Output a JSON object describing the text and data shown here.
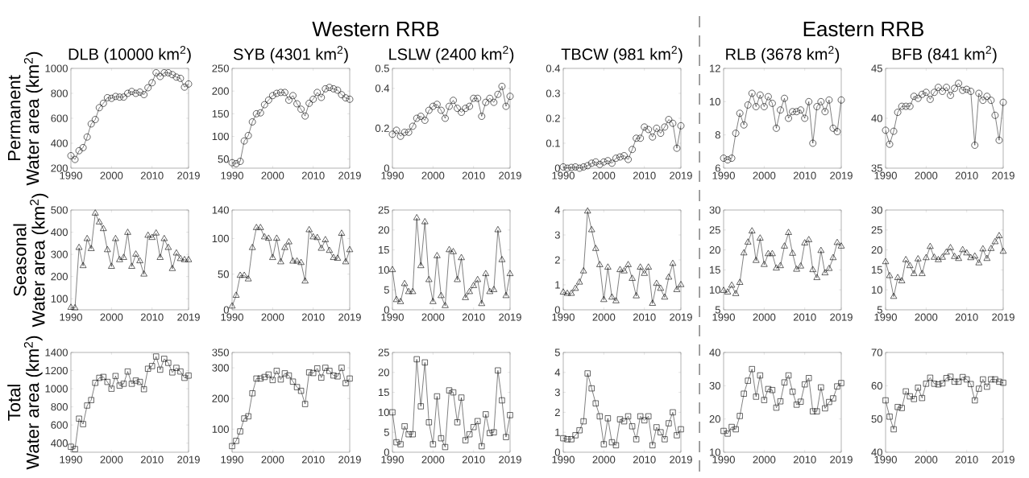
{
  "chart_data": [
    {
      "type": "line",
      "title": "DLB (10000 km$^{2}$)",
      "ylabel": "Permanent\nWater area (km$^{2}$)",
      "annotations": [
        "Western RRB"
      ],
      "marker": "circle",
      "color": "#000000",
      "xlim": [
        1990,
        2019
      ],
      "xticks": [
        1990,
        2000,
        2010,
        2019
      ],
      "ylim": [
        200,
        1000
      ],
      "yticks": [
        200,
        400,
        600,
        800,
        1000
      ],
      "x": [
        1990,
        1991,
        1992,
        1993,
        1994,
        1995,
        1996,
        1997,
        1998,
        1999,
        2000,
        2001,
        2002,
        2003,
        2004,
        2005,
        2006,
        2007,
        2008,
        2009,
        2010,
        2011,
        2012,
        2013,
        2014,
        2015,
        2016,
        2017,
        2018,
        2019
      ],
      "values": [
        300,
        270,
        340,
        365,
        450,
        555,
        590,
        685,
        720,
        765,
        760,
        775,
        770,
        770,
        800,
        815,
        800,
        810,
        790,
        845,
        885,
        965,
        935,
        965,
        965,
        950,
        930,
        920,
        850,
        875
      ]
    },
    {
      "type": "line",
      "title": "SYB (4301 km$^{2}$)",
      "marker": "circle",
      "color": "#000000",
      "xlim": [
        1990,
        2019
      ],
      "xticks": [
        1990,
        2000,
        2010,
        2019
      ],
      "ylim": [
        30,
        250
      ],
      "yticks": [
        50,
        100,
        150,
        200,
        250
      ],
      "x": [
        1990,
        1991,
        1992,
        1993,
        1994,
        1995,
        1996,
        1997,
        1998,
        1999,
        2000,
        2001,
        2002,
        2003,
        2004,
        2005,
        2006,
        2007,
        2008,
        2009,
        2010,
        2011,
        2012,
        2013,
        2014,
        2015,
        2016,
        2017,
        2018,
        2019
      ],
      "values": [
        42,
        40,
        45,
        90,
        102,
        132,
        150,
        152,
        170,
        180,
        190,
        195,
        197,
        197,
        180,
        190,
        172,
        160,
        145,
        173,
        182,
        197,
        186,
        205,
        208,
        205,
        202,
        192,
        185,
        182
      ]
    },
    {
      "type": "line",
      "title": "LSLW (2400 km$^{2}$)",
      "marker": "circle",
      "color": "#000000",
      "xlim": [
        1990,
        2019
      ],
      "xticks": [
        1990,
        2000,
        2010,
        2019
      ],
      "ylim": [
        0,
        0.5
      ],
      "yticks": [
        0,
        0.2,
        0.4,
        0.5
      ],
      "x": [
        1990,
        1991,
        1992,
        1993,
        1994,
        1995,
        1996,
        1997,
        1998,
        1999,
        2000,
        2001,
        2002,
        2003,
        2004,
        2005,
        2006,
        2007,
        2008,
        2009,
        2010,
        2011,
        2012,
        2013,
        2014,
        2015,
        2016,
        2017,
        2018,
        2019
      ],
      "values": [
        0.17,
        0.19,
        0.16,
        0.18,
        0.18,
        0.21,
        0.25,
        0.26,
        0.24,
        0.29,
        0.31,
        0.32,
        0.29,
        0.25,
        0.31,
        0.34,
        0.3,
        0.28,
        0.3,
        0.31,
        0.35,
        0.35,
        0.26,
        0.33,
        0.35,
        0.33,
        0.37,
        0.41,
        0.31,
        0.36
      ]
    },
    {
      "type": "line",
      "title": "TBCW (981 km$^{2}$)",
      "marker": "circle",
      "color": "#000000",
      "xlim": [
        1990,
        2019
      ],
      "xticks": [
        1990,
        2000,
        2010,
        2019
      ],
      "ylim": [
        0,
        0.4
      ],
      "yticks": [
        0,
        0.1,
        0.2,
        0.3,
        0.4
      ],
      "x": [
        1990,
        1991,
        1992,
        1993,
        1994,
        1995,
        1996,
        1997,
        1998,
        1999,
        2000,
        2001,
        2002,
        2003,
        2004,
        2005,
        2006,
        2007,
        2008,
        2009,
        2010,
        2011,
        2012,
        2013,
        2014,
        2015,
        2016,
        2017,
        2018,
        2019
      ],
      "values": [
        0.005,
        0,
        0.003,
        0.005,
        0,
        0.005,
        0.01,
        0.02,
        0.025,
        0.015,
        0.025,
        0.03,
        0.02,
        0.04,
        0.045,
        0.05,
        0.035,
        0.075,
        0.12,
        0.12,
        0.165,
        0.155,
        0.125,
        0.16,
        0.14,
        0.165,
        0.195,
        0.18,
        0.08,
        0.17
      ]
    },
    {
      "type": "line",
      "title": "RLB (3678 km$^{2}$)",
      "annotations": [
        "Eastern RRB"
      ],
      "marker": "circle",
      "color": "#000000",
      "xlim": [
        1990,
        2019
      ],
      "xticks": [
        1990,
        2000,
        2010,
        2019
      ],
      "ylim": [
        6,
        12
      ],
      "yticks": [
        6,
        8,
        10,
        12
      ],
      "x": [
        1990,
        1991,
        1992,
        1993,
        1994,
        1995,
        1996,
        1997,
        1998,
        1999,
        2000,
        2001,
        2002,
        2003,
        2004,
        2005,
        2006,
        2007,
        2008,
        2009,
        2010,
        2011,
        2012,
        2013,
        2014,
        2015,
        2016,
        2017,
        2018,
        2019
      ],
      "values": [
        6.6,
        6.5,
        6.6,
        8.1,
        9.3,
        8.6,
        9.8,
        10.5,
        9.7,
        10.4,
        9.7,
        10.3,
        9.9,
        8.4,
        9.5,
        10.2,
        9.0,
        9.4,
        9.4,
        9.5,
        9.0,
        10.0,
        7.5,
        9.7,
        10.0,
        9.4,
        10.1,
        8.4,
        8.2,
        10.1
      ]
    },
    {
      "type": "line",
      "title": "BFB (841 km$^{2}$)",
      "marker": "circle",
      "color": "#000000",
      "xlim": [
        1990,
        2019
      ],
      "xticks": [
        1990,
        2000,
        2010,
        2019
      ],
      "ylim": [
        35,
        45
      ],
      "yticks": [
        35,
        40,
        45
      ],
      "x": [
        1990,
        1991,
        1992,
        1993,
        1994,
        1995,
        1996,
        1997,
        1998,
        1999,
        2000,
        2001,
        2002,
        2003,
        2004,
        2005,
        2006,
        2007,
        2008,
        2009,
        2010,
        2011,
        2012,
        2013,
        2014,
        2015,
        2016,
        2017,
        2018,
        2019
      ],
      "values": [
        38.8,
        37.4,
        38.7,
        40.6,
        41.2,
        41.2,
        41.2,
        42.2,
        42.0,
        42.4,
        42.6,
        41.9,
        42.6,
        43.1,
        42.7,
        43.1,
        42.3,
        43.0,
        43.5,
        42.8,
        42.9,
        42.7,
        37.3,
        42.5,
        41.8,
        42.2,
        41.8,
        40.3,
        37.8,
        41.6
      ]
    },
    {
      "type": "line",
      "ylabel": "Seasonal\nWater area (km$^{2}$)",
      "marker": "triangle",
      "color": "#000000",
      "xlim": [
        1990,
        2019
      ],
      "xticks": [
        1990,
        2000,
        2010,
        2019
      ],
      "ylim": [
        50,
        500
      ],
      "yticks": [
        100,
        200,
        300,
        400,
        500
      ],
      "x": [
        1990,
        1991,
        1992,
        1993,
        1994,
        1995,
        1996,
        1997,
        1998,
        1999,
        2000,
        2001,
        2002,
        2003,
        2004,
        2005,
        2006,
        2007,
        2008,
        2009,
        2010,
        2011,
        2012,
        2013,
        2014,
        2015,
        2016,
        2017,
        2018,
        2019
      ],
      "values": [
        60,
        58,
        330,
        248,
        370,
        325,
        485,
        445,
        415,
        320,
        245,
        370,
        275,
        285,
        398,
        245,
        300,
        270,
        210,
        385,
        375,
        395,
        285,
        370,
        330,
        235,
        305,
        280,
        275,
        275
      ]
    },
    {
      "type": "line",
      "marker": "triangle",
      "color": "#000000",
      "xlim": [
        1990,
        2019
      ],
      "xticks": [
        1990,
        2000,
        2010,
        2019
      ],
      "ylim": [
        0,
        140
      ],
      "yticks": [
        0,
        50,
        100,
        140
      ],
      "x": [
        1990,
        1991,
        1992,
        1993,
        1994,
        1995,
        1996,
        1997,
        1998,
        1999,
        2000,
        2001,
        2002,
        2003,
        2004,
        2005,
        2006,
        2007,
        2008,
        2009,
        2010,
        2011,
        2012,
        2013,
        2014,
        2015,
        2016,
        2017,
        2018,
        2019
      ],
      "values": [
        5,
        20,
        48,
        48,
        43,
        87,
        115,
        115,
        102,
        100,
        73,
        100,
        67,
        87,
        95,
        68,
        68,
        66,
        40,
        112,
        102,
        101,
        86,
        98,
        83,
        73,
        72,
        107,
        67,
        84
      ]
    },
    {
      "type": "line",
      "marker": "triangle",
      "color": "#000000",
      "xlim": [
        1990,
        2019
      ],
      "xticks": [
        1990,
        2000,
        2010,
        2019
      ],
      "ylim": [
        0,
        25
      ],
      "yticks": [
        0,
        5,
        10,
        15,
        20,
        25
      ],
      "x": [
        1990,
        1991,
        1992,
        1993,
        1994,
        1995,
        1996,
        1997,
        1998,
        1999,
        2000,
        2001,
        2002,
        2003,
        2004,
        2005,
        2006,
        2007,
        2008,
        2009,
        2010,
        2011,
        2012,
        2013,
        2014,
        2015,
        2016,
        2017,
        2018,
        2019
      ],
      "values": [
        10,
        2.5,
        2,
        6.5,
        4.5,
        4.5,
        23,
        11,
        22,
        7.5,
        2,
        13.5,
        3.5,
        1,
        15,
        14.5,
        7.5,
        13,
        3,
        4.5,
        6,
        7.5,
        1.5,
        9,
        4.5,
        5,
        20,
        12.5,
        3.5,
        9
      ]
    },
    {
      "type": "line",
      "marker": "triangle",
      "color": "#000000",
      "xlim": [
        1990,
        2019
      ],
      "xticks": [
        1990,
        2000,
        2010,
        2019
      ],
      "ylim": [
        0,
        4
      ],
      "yticks": [
        0,
        1,
        2,
        3,
        4
      ],
      "x": [
        1990,
        1991,
        1992,
        1993,
        1994,
        1995,
        1996,
        1997,
        1998,
        1999,
        2000,
        2001,
        2002,
        2003,
        2004,
        2005,
        2006,
        2007,
        2008,
        2009,
        2010,
        2011,
        2012,
        2013,
        2014,
        2015,
        2016,
        2017,
        2018,
        2019
      ],
      "values": [
        0.7,
        0.65,
        0.65,
        0.85,
        1.1,
        1.55,
        3.95,
        3.2,
        2.45,
        1.8,
        0.4,
        1.7,
        0.5,
        0.35,
        1.6,
        1.55,
        1.8,
        1.25,
        0.55,
        1.7,
        1.45,
        1.7,
        0.25,
        1.05,
        0.85,
        0.5,
        1.3,
        1.85,
        0.8,
        1.0
      ]
    },
    {
      "type": "line",
      "marker": "triangle",
      "color": "#000000",
      "xlim": [
        1990,
        2019
      ],
      "xticks": [
        1990,
        2000,
        2010,
        2019
      ],
      "ylim": [
        5,
        30
      ],
      "yticks": [
        5,
        10,
        15,
        20,
        25,
        30
      ],
      "x": [
        1990,
        1991,
        1992,
        1993,
        1994,
        1995,
        1996,
        1997,
        1998,
        1999,
        2000,
        2001,
        2002,
        2003,
        2004,
        2005,
        2006,
        2007,
        2008,
        2009,
        2010,
        2011,
        2012,
        2013,
        2014,
        2015,
        2016,
        2017,
        2018,
        2019
      ],
      "values": [
        9.8,
        9.4,
        11.1,
        9.0,
        11.8,
        19.2,
        21.9,
        24.7,
        17.3,
        22.9,
        16.3,
        19.0,
        19.0,
        15.4,
        16.0,
        20.9,
        24.3,
        19.1,
        15.1,
        15.9,
        21.7,
        22.5,
        15.0,
        13.0,
        19.8,
        14.2,
        15.3,
        18.0,
        21.8,
        20.9
      ]
    },
    {
      "type": "line",
      "marker": "triangle",
      "color": "#000000",
      "xlim": [
        1990,
        2019
      ],
      "xticks": [
        1990,
        2000,
        2010,
        2019
      ],
      "ylim": [
        5,
        30
      ],
      "yticks": [
        5,
        10,
        15,
        20,
        25,
        30
      ],
      "x": [
        1990,
        1991,
        1992,
        1993,
        1994,
        1995,
        1996,
        1997,
        1998,
        1999,
        2000,
        2001,
        2002,
        2003,
        2004,
        2005,
        2006,
        2007,
        2008,
        2009,
        2010,
        2011,
        2012,
        2013,
        2014,
        2015,
        2016,
        2017,
        2018,
        2019
      ],
      "values": [
        17,
        13.5,
        8.3,
        13,
        12.2,
        17.5,
        16,
        14,
        17.7,
        14,
        18,
        20.8,
        18.1,
        17.5,
        18.1,
        19.4,
        20.5,
        18.3,
        17.8,
        20,
        19.2,
        18,
        18.4,
        16.7,
        20.2,
        17.8,
        20.3,
        22,
        23.5,
        19.6
      ]
    },
    {
      "type": "line",
      "ylabel": "Total\nWater area (km$^{2}$)",
      "marker": "square",
      "color": "#000000",
      "xlim": [
        1990,
        2019
      ],
      "xticks": [
        1990,
        2000,
        2010,
        2019
      ],
      "ylim": [
        300,
        1400
      ],
      "yticks": [
        400,
        600,
        800,
        1000,
        1200,
        1400
      ],
      "x": [
        1990,
        1991,
        1992,
        1993,
        1994,
        1995,
        1996,
        1997,
        1998,
        1999,
        2000,
        2001,
        2002,
        2003,
        2004,
        2005,
        2006,
        2007,
        2008,
        2009,
        2010,
        2011,
        2012,
        2013,
        2014,
        2015,
        2016,
        2017,
        2018,
        2019
      ],
      "values": [
        360,
        335,
        670,
        610,
        815,
        875,
        1065,
        1120,
        1130,
        1075,
        1000,
        1140,
        1035,
        1055,
        1190,
        1055,
        1090,
        1075,
        995,
        1220,
        1250,
        1355,
        1210,
        1330,
        1285,
        1180,
        1230,
        1190,
        1120,
        1145
      ]
    },
    {
      "type": "line",
      "marker": "square",
      "color": "#000000",
      "xlim": [
        1990,
        2019
      ],
      "xticks": [
        1990,
        2000,
        2010,
        2019
      ],
      "ylim": [
        25,
        350
      ],
      "yticks": [
        100,
        200,
        300,
        350
      ],
      "x": [
        1990,
        1991,
        1992,
        1993,
        1994,
        1995,
        1996,
        1997,
        1998,
        1999,
        2000,
        2001,
        2002,
        2003,
        2004,
        2005,
        2006,
        2007,
        2008,
        2009,
        2010,
        2011,
        2012,
        2013,
        2014,
        2015,
        2016,
        2017,
        2018,
        2019
      ],
      "values": [
        45,
        62,
        93,
        135,
        142,
        217,
        265,
        265,
        270,
        278,
        260,
        290,
        262,
        282,
        275,
        255,
        237,
        225,
        182,
        285,
        283,
        298,
        268,
        300,
        290,
        275,
        272,
        300,
        250,
        265
      ]
    },
    {
      "type": "line",
      "marker": "square",
      "color": "#000000",
      "xlim": [
        1990,
        2019
      ],
      "xticks": [
        1990,
        2000,
        2010,
        2019
      ],
      "ylim": [
        0,
        25
      ],
      "yticks": [
        0,
        5,
        10,
        15,
        20,
        25
      ],
      "x": [
        1990,
        1991,
        1992,
        1993,
        1994,
        1995,
        1996,
        1997,
        1998,
        1999,
        2000,
        2001,
        2002,
        2003,
        2004,
        2005,
        2006,
        2007,
        2008,
        2009,
        2010,
        2011,
        2012,
        2013,
        2014,
        2015,
        2016,
        2017,
        2018,
        2019
      ],
      "values": [
        10,
        2.5,
        2,
        6.5,
        4.5,
        4.5,
        23.3,
        11.5,
        22.5,
        7.5,
        2,
        14,
        3.5,
        1.3,
        15.5,
        15,
        7.5,
        13.7,
        3,
        4.5,
        6.3,
        7.8,
        1.5,
        9.5,
        4.8,
        5,
        20.5,
        13,
        3.8,
        9.3
      ]
    },
    {
      "type": "line",
      "marker": "square",
      "color": "#000000",
      "xlim": [
        1990,
        2019
      ],
      "xticks": [
        1990,
        2000,
        2010,
        2019
      ],
      "ylim": [
        0,
        5
      ],
      "yticks": [
        0,
        1,
        2,
        3,
        4,
        5
      ],
      "x": [
        1990,
        1991,
        1992,
        1993,
        1994,
        1995,
        1996,
        1997,
        1998,
        1999,
        2000,
        2001,
        2002,
        2003,
        2004,
        2005,
        2006,
        2007,
        2008,
        2009,
        2010,
        2011,
        2012,
        2013,
        2014,
        2015,
        2016,
        2017,
        2018,
        2019
      ],
      "values": [
        0.7,
        0.65,
        0.65,
        0.85,
        1.1,
        1.55,
        3.95,
        3.2,
        2.45,
        1.8,
        0.4,
        1.7,
        0.5,
        0.35,
        1.65,
        1.55,
        1.8,
        1.3,
        0.65,
        1.8,
        1.6,
        1.8,
        0.35,
        1.25,
        1.0,
        0.65,
        1.45,
        2.0,
        0.85,
        1.15
      ]
    },
    {
      "type": "line",
      "marker": "square",
      "color": "#000000",
      "xlim": [
        1990,
        2019
      ],
      "xticks": [
        1990,
        2000,
        2010,
        2019
      ],
      "ylim": [
        10,
        40
      ],
      "yticks": [
        10,
        20,
        30,
        40
      ],
      "x": [
        1990,
        1991,
        1992,
        1993,
        1994,
        1995,
        1996,
        1997,
        1998,
        1999,
        2000,
        2001,
        2002,
        2003,
        2004,
        2005,
        2006,
        2007,
        2008,
        2009,
        2010,
        2011,
        2012,
        2013,
        2014,
        2015,
        2016,
        2017,
        2018,
        2019
      ],
      "values": [
        16.4,
        15.6,
        17.6,
        16.9,
        20.9,
        27.6,
        31.5,
        35.0,
        26.7,
        33.1,
        25.7,
        29.0,
        28.7,
        23.4,
        25.3,
        31.0,
        33.1,
        28.2,
        24.3,
        25.2,
        30.4,
        32.3,
        22.3,
        22.3,
        29.5,
        23.2,
        25.1,
        26.2,
        29.8,
        30.8
      ]
    },
    {
      "type": "line",
      "marker": "square",
      "color": "#000000",
      "xlim": [
        1990,
        2019
      ],
      "xticks": [
        1990,
        2000,
        2010,
        2019
      ],
      "ylim": [
        40,
        70
      ],
      "yticks": [
        40,
        50,
        60,
        70
      ],
      "x": [
        1990,
        1991,
        1992,
        1993,
        1994,
        1995,
        1996,
        1997,
        1998,
        1999,
        2000,
        2001,
        2002,
        2003,
        2004,
        2005,
        2006,
        2007,
        2008,
        2009,
        2010,
        2011,
        2012,
        2013,
        2014,
        2015,
        2016,
        2017,
        2018,
        2019
      ],
      "values": [
        55.6,
        50.7,
        46.9,
        53.6,
        53.3,
        58.3,
        56.8,
        56.0,
        59.4,
        56.3,
        60.6,
        62.4,
        60.6,
        60.4,
        60.7,
        62.3,
        62.7,
        61.2,
        61.2,
        62.6,
        61.9,
        60.5,
        55.6,
        59.1,
        61.9,
        59.7,
        61.9,
        61.9,
        61.2,
        60.9
      ]
    }
  ]
}
